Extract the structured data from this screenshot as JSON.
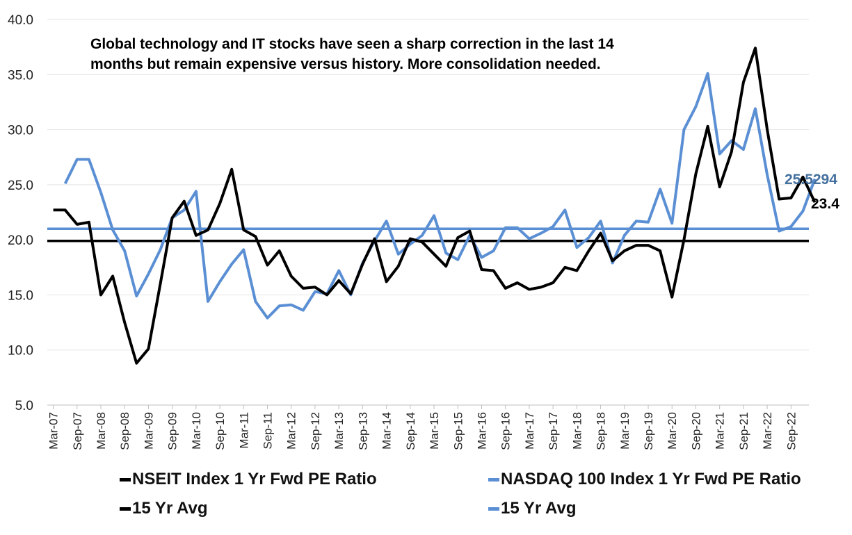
{
  "chart_data": {
    "type": "line",
    "annotation": [
      "Global technology and IT stocks have seen a sharp correction in the last 14",
      "months but remain expensive versus history. More consolidation needed."
    ],
    "ylim": [
      5,
      40
    ],
    "yticks": [
      "5.0",
      "10.0",
      "15.0",
      "20.0",
      "25.0",
      "30.0",
      "35.0",
      "40.0"
    ],
    "ytick_values": [
      5,
      10,
      15,
      20,
      25,
      30,
      35,
      40
    ],
    "x_tick_labels": [
      "Mar-07",
      "Sep-07",
      "Mar-08",
      "Sep-08",
      "Mar-09",
      "Sep-09",
      "Mar-10",
      "Sep-10",
      "Mar-11",
      "Sep-11",
      "Mar-12",
      "Sep-12",
      "Mar-13",
      "Sep-13",
      "Mar-14",
      "Sep-14",
      "Mar-15",
      "Sep-15",
      "Mar-16",
      "Sep-16",
      "Mar-17",
      "Sep-17",
      "Mar-18",
      "Sep-18",
      "Mar-19",
      "Sep-19",
      "Mar-20",
      "Sep-20",
      "Mar-21",
      "Sep-21",
      "Mar-22",
      "Sep-22"
    ],
    "x_periods": 64,
    "grid": "horizontal",
    "series": [
      {
        "name": "NSEIT Index 1 Yr Fwd PE Ratio",
        "color": "#000000",
        "start_index": 0,
        "values": [
          22.7,
          22.7,
          21.4,
          21.6,
          15.0,
          16.7,
          12.5,
          8.8,
          10.1,
          16.0,
          22.0,
          23.5,
          20.4,
          20.9,
          23.3,
          26.4,
          20.9,
          20.3,
          17.7,
          19.0,
          16.7,
          15.6,
          15.7,
          15.0,
          16.3,
          15.1,
          17.8,
          20.1,
          16.2,
          17.6,
          20.1,
          19.8,
          18.7,
          17.6,
          20.2,
          20.8,
          17.3,
          17.2,
          15.6,
          16.1,
          15.5,
          15.7,
          16.1,
          17.5,
          17.2,
          19.0,
          20.6,
          18.1,
          19.0,
          19.5,
          19.5,
          19.0,
          14.8,
          20.0,
          26.0,
          30.3,
          24.8,
          28.0,
          34.3,
          37.4,
          30.0,
          23.7,
          23.8,
          25.7,
          23.4
        ]
      },
      {
        "name": "NASDAQ 100 Index 1 Yr Fwd PE Ratio",
        "color": "#5B8FD4",
        "start_index": 1,
        "values": [
          25.1,
          27.3,
          27.3,
          24.3,
          20.9,
          19.0,
          14.9,
          16.9,
          19.1,
          22.0,
          22.7,
          24.4,
          14.4,
          16.2,
          17.8,
          19.1,
          14.4,
          12.9,
          14.0,
          14.1,
          13.6,
          15.3,
          15.1,
          17.2,
          15.0,
          17.9,
          19.9,
          21.7,
          18.7,
          19.6,
          20.4,
          22.2,
          18.8,
          18.2,
          20.4,
          18.4,
          19.0,
          21.1,
          21.1,
          20.1,
          20.6,
          21.2,
          22.7,
          19.3,
          20.2,
          21.7,
          17.9,
          20.4,
          21.7,
          21.6,
          24.6,
          21.5,
          30.0,
          32.1,
          35.1,
          27.8,
          29.0,
          28.2,
          31.9,
          25.9,
          20.8,
          21.2,
          22.6,
          25.5294
        ]
      }
    ],
    "averages": [
      {
        "name": "15 Yr Avg",
        "value": 19.9,
        "color": "#000000"
      },
      {
        "name": "15 Yr Avg",
        "value": 21.0,
        "color": "#5B8FD4"
      }
    ],
    "end_labels": [
      {
        "text": "25.5294",
        "color": "#44709E"
      },
      {
        "text": "23.4",
        "color": "#000000"
      }
    ]
  },
  "legend": {
    "items": [
      {
        "label": "NSEIT Index 1 Yr Fwd PE Ratio",
        "color": "#000000"
      },
      {
        "label": "NASDAQ 100 Index 1 Yr Fwd PE Ratio",
        "color": "#5B8FD4"
      },
      {
        "label": "15 Yr Avg",
        "color": "#000000"
      },
      {
        "label": "15 Yr Avg",
        "color": "#5B8FD4"
      }
    ]
  }
}
